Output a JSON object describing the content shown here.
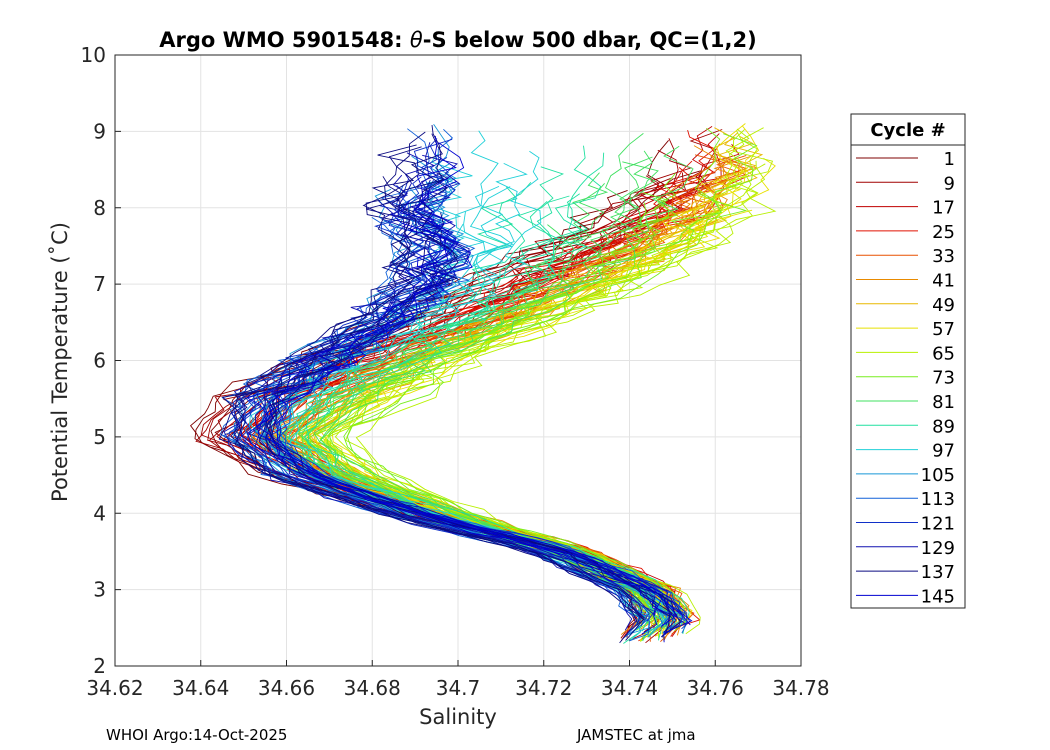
{
  "chart_data": {
    "type": "line",
    "title_parts": [
      "Argo WMO 5901548: ",
      "θ",
      "-S below 500 dbar,  QC=(1,2)"
    ],
    "xlabel": "Salinity",
    "ylabel": "Potential Temperature (˚C)",
    "xlim": [
      34.62,
      34.78
    ],
    "ylim": [
      2,
      10
    ],
    "xticks": [
      "34.62",
      "34.64",
      "34.66",
      "34.68",
      "34.7",
      "34.72",
      "34.74",
      "34.76",
      "34.78"
    ],
    "yticks": [
      "2",
      "3",
      "4",
      "5",
      "6",
      "7",
      "8",
      "9",
      "10"
    ],
    "grid": true,
    "legend": {
      "title": "Cycle #",
      "placement": "right-outside",
      "entries": [
        "1",
        "9",
        "17",
        "25",
        "33",
        "41",
        "49",
        "57",
        "65",
        "73",
        "81",
        "89",
        "97",
        "105",
        "113",
        "121",
        "129",
        "137",
        "145"
      ],
      "colors": [
        "#7f0000",
        "#a00000",
        "#c00000",
        "#e01000",
        "#e85000",
        "#e88a00",
        "#e8b800",
        "#e8e000",
        "#b8f000",
        "#78ee20",
        "#40e060",
        "#20e0a0",
        "#20d0d8",
        "#1898d8",
        "#1060d8",
        "#1030c8",
        "#1010b0",
        "#0a0a80",
        "#0000d0"
      ]
    },
    "series_template": {
      "description": "Each cycle profile follows a common theta-S curve (salinity in PSU vs potential temperature in degC)",
      "base_curve_theta": [
        2.3,
        2.6,
        3.0,
        3.5,
        4.0,
        4.5,
        5.0,
        5.5,
        6.0,
        6.5,
        7.0,
        7.5,
        8.0,
        8.4
      ],
      "early_cycles_salinity": [
        34.74,
        34.748,
        34.746,
        34.728,
        34.69,
        34.66,
        34.643,
        34.65,
        34.668,
        34.69,
        34.708,
        34.725,
        34.742,
        34.752
      ],
      "mid_cycles_salinity": [
        34.745,
        34.75,
        34.745,
        34.725,
        34.7,
        34.68,
        34.67,
        34.685,
        34.7,
        34.72,
        34.74,
        34.755,
        34.765,
        34.768
      ],
      "late_cycles_salinity": [
        34.742,
        34.748,
        34.742,
        34.722,
        34.688,
        34.662,
        34.652,
        34.655,
        34.668,
        34.682,
        34.692,
        34.694,
        34.688,
        34.692
      ]
    }
  },
  "footer": {
    "left": "WHOI Argo:14-Oct-2025",
    "right": "JAMSTEC at jma"
  }
}
